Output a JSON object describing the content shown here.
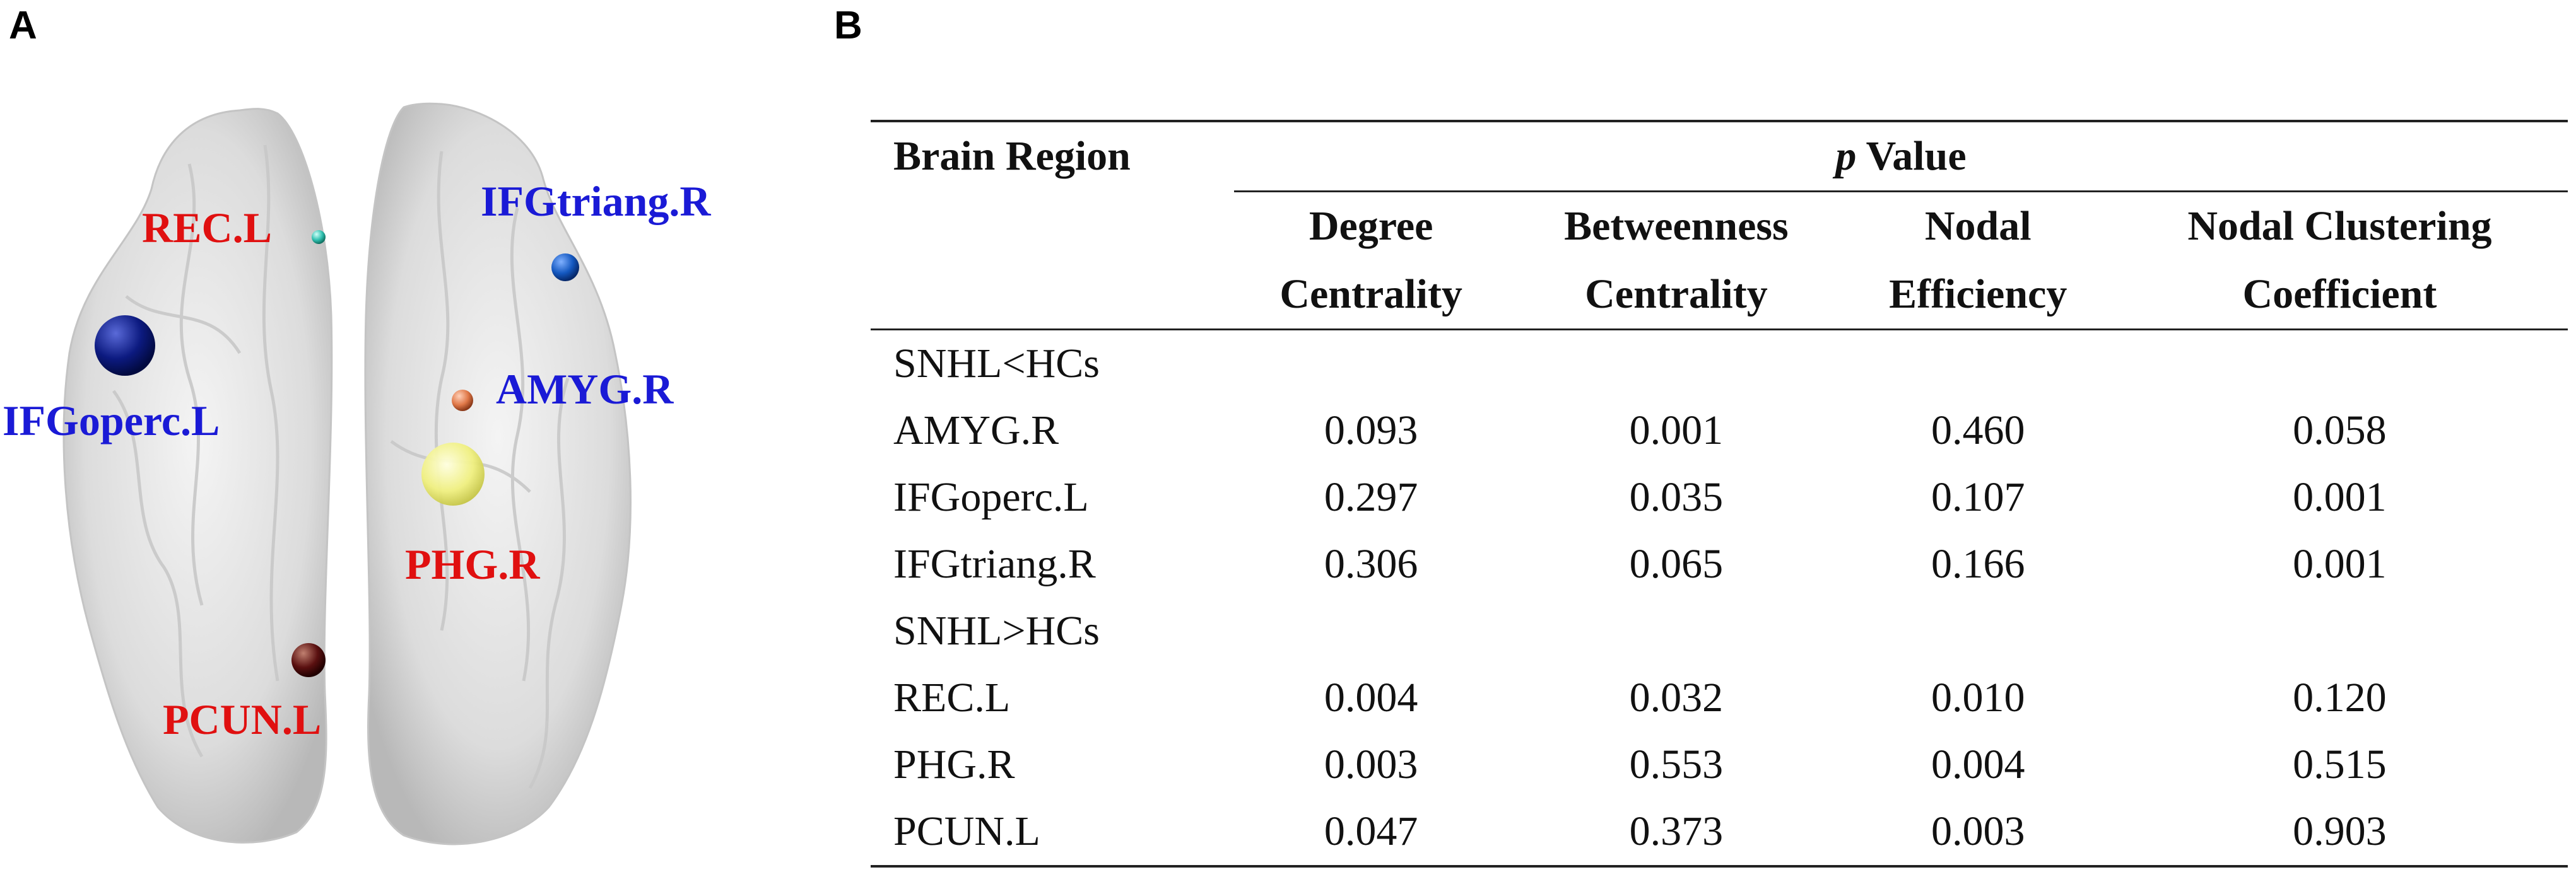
{
  "panels": {
    "a_label": "A",
    "b_label": "B"
  },
  "brain": {
    "regions": [
      {
        "name": "REC.L",
        "color": "#e01010"
      },
      {
        "name": "IFGtriang.R",
        "color": "#1a1ad6"
      },
      {
        "name": "IFGoperc.L",
        "color": "#1a1ad6"
      },
      {
        "name": "AMYG.R",
        "color": "#1a1ad6"
      },
      {
        "name": "PHG.R",
        "color": "#e01010"
      },
      {
        "name": "PCUN.L",
        "color": "#e01010"
      }
    ]
  },
  "table": {
    "header": {
      "region": "Brain Region",
      "p_italic": "p",
      "p_rest": " Value",
      "columns": [
        {
          "line1": "Degree",
          "line2": "Centrality"
        },
        {
          "line1": "Betweenness",
          "line2": "Centrality"
        },
        {
          "line1": "Nodal",
          "line2": "Efficiency"
        },
        {
          "line1": "Nodal Clustering",
          "line2": "Coefficient"
        }
      ]
    },
    "groups": [
      {
        "label": "SNHL<HCs",
        "rows": [
          {
            "region": "AMYG.R",
            "values": [
              "0.093",
              "0.001",
              "0.460",
              "0.058"
            ],
            "bold": [
              false,
              true,
              false,
              false
            ]
          },
          {
            "region": "IFGoperc.L",
            "values": [
              "0.297",
              "0.035",
              "0.107",
              "0.001"
            ],
            "bold": [
              false,
              false,
              false,
              true
            ]
          },
          {
            "region": "IFGtriang.R",
            "values": [
              "0.306",
              "0.065",
              "0.166",
              "0.001"
            ],
            "bold": [
              false,
              false,
              false,
              true
            ]
          }
        ]
      },
      {
        "label": "SNHL>HCs",
        "rows": [
          {
            "region": "REC.L",
            "values": [
              "0.004",
              "0.032",
              "0.010",
              "0.120"
            ],
            "bold": [
              true,
              false,
              false,
              false
            ]
          },
          {
            "region": "PHG.R",
            "values": [
              "0.003",
              "0.553",
              "0.004",
              "0.515"
            ],
            "bold": [
              true,
              false,
              true,
              false
            ]
          },
          {
            "region": "PCUN.L",
            "values": [
              "0.047",
              "0.373",
              "0.003",
              "0.903"
            ],
            "bold": [
              false,
              false,
              true,
              false
            ]
          }
        ]
      }
    ]
  }
}
